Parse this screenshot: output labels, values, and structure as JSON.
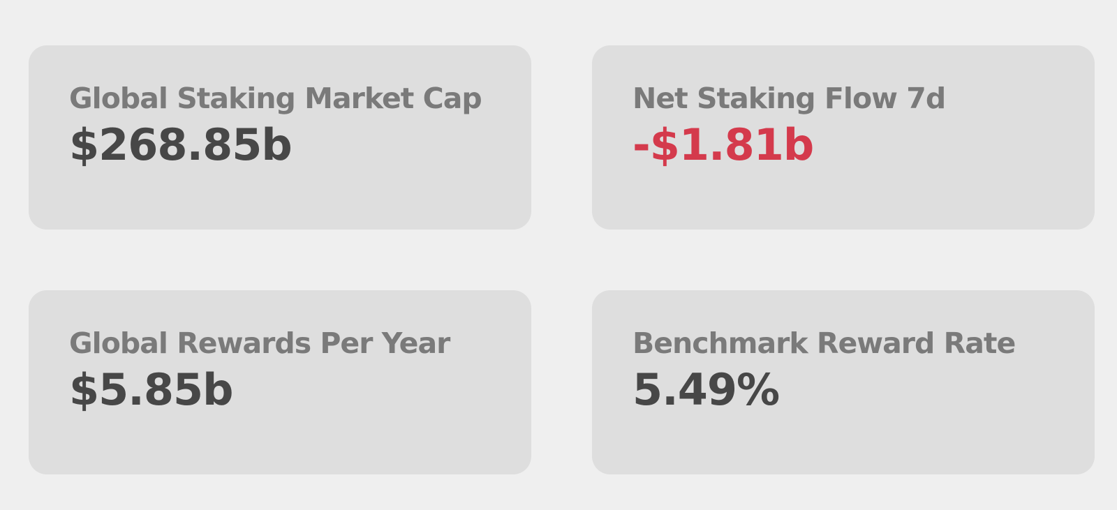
{
  "cards": [
    {
      "label": "Global Staking Market Cap",
      "value": "$268.85b",
      "tone": "neutral"
    },
    {
      "label": "Net Staking Flow 7d",
      "value": "-$1.81b",
      "tone": "negative"
    },
    {
      "label": "Global Rewards Per Year",
      "value": "$5.85b",
      "tone": "neutral"
    },
    {
      "label": "Benchmark Reward Rate",
      "value": "5.49%",
      "tone": "neutral"
    }
  ]
}
